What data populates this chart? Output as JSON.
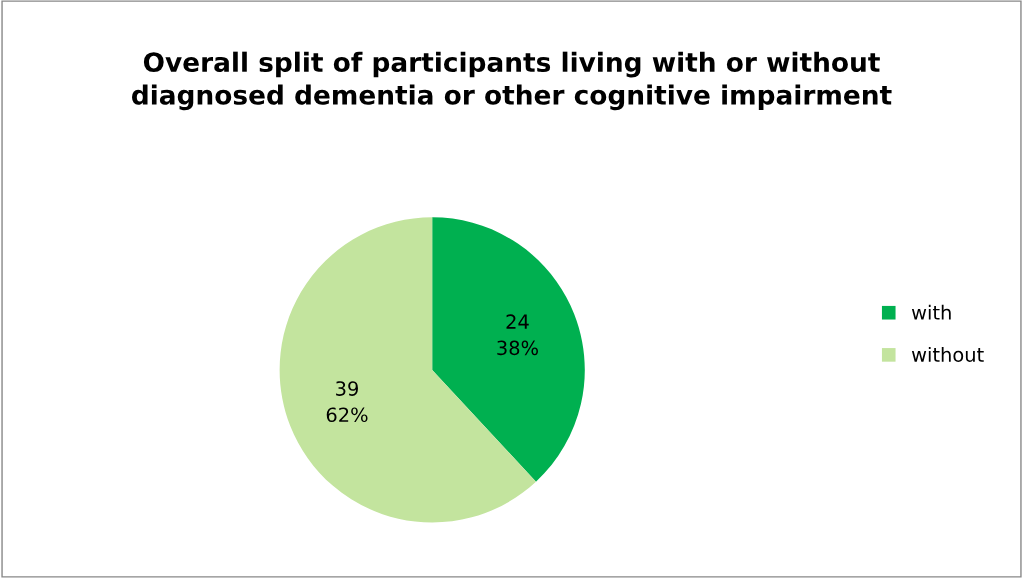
{
  "chart_data": {
    "type": "pie",
    "title": "Overall split of participants living with or without\ndiagnosed dementia or other cognitive impairment",
    "categories": [
      "with",
      "without"
    ],
    "values": [
      24,
      39
    ],
    "colors": [
      "#00b050",
      "#c3e49e"
    ],
    "value_labels": [
      "24\n38%",
      "39\n62%"
    ],
    "legend": "right"
  }
}
